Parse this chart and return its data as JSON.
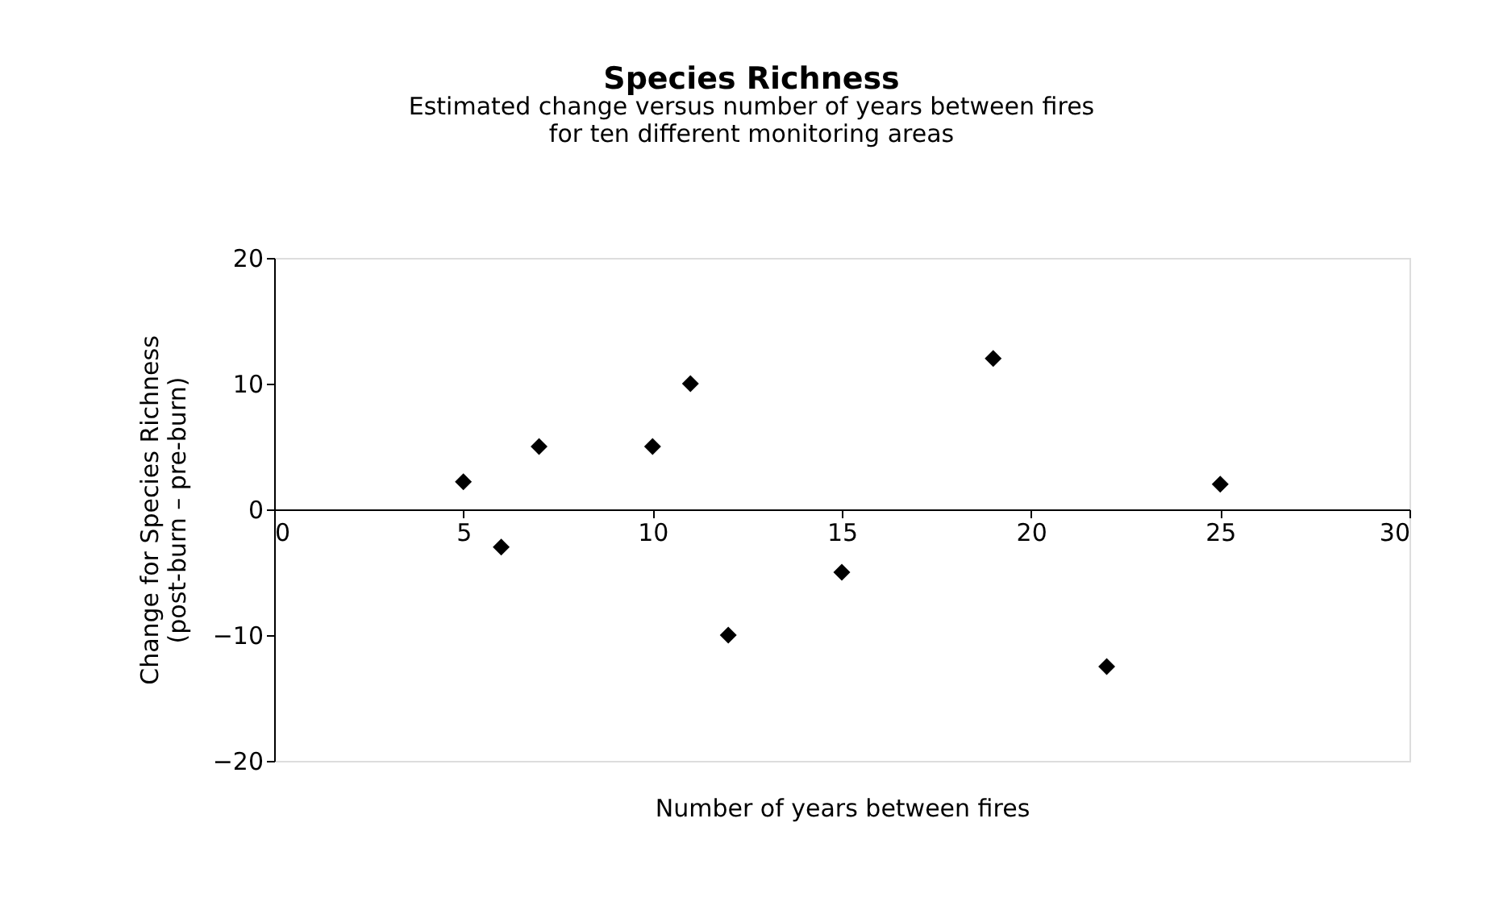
{
  "chart_data": {
    "type": "scatter",
    "title": "Species Richness",
    "subtitle": "Estimated change versus number of years between fires\nfor ten different monitoring areas",
    "xlabel": "Number of years between fires",
    "ylabel": "Change for Species Richness\n(post-burn – pre-burn)",
    "x": [
      5,
      6,
      7,
      10,
      11,
      12,
      15,
      19,
      22,
      25
    ],
    "series": [
      {
        "color": "#000000",
        "values": [
          2.2,
          -3,
          5,
          5,
          10,
          -10,
          -5,
          12,
          -12.5,
          2
        ]
      }
    ],
    "marker": "diamond",
    "grid": false,
    "xlim": [
      0,
      30
    ],
    "xticks": [
      0,
      5,
      10,
      15,
      20,
      25,
      30
    ],
    "ylim": [
      -20,
      20
    ],
    "yticks": [
      -20,
      -10,
      0,
      10,
      20
    ]
  }
}
